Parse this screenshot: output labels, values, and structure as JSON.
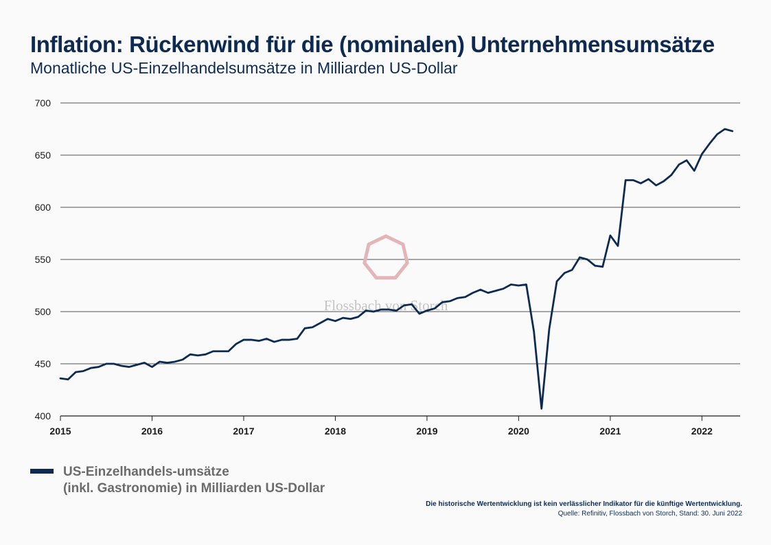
{
  "chart_data": {
    "type": "line",
    "title": "Inflation: Rückenwind für die (nominalen) Unternehmensumsätze",
    "subtitle": "Monatliche US-Einzelhandelsumsätze in Milliarden US-Dollar",
    "watermark": "Flossbach von Storch",
    "x_ticks": [
      "2015",
      "2016",
      "2017",
      "2018",
      "2019",
      "2020",
      "2021",
      "2022"
    ],
    "y_ticks": [
      "400",
      "450",
      "500",
      "550",
      "600",
      "650",
      "700"
    ],
    "ylim": [
      400,
      700
    ],
    "xlim": [
      "2015-01",
      "2022-06"
    ],
    "grid": "horizontal",
    "legend_position": "bottom-left",
    "series": [
      {
        "name": "US-Einzelhandels-umsätze (inkl. Gastronomie) in Milliarden US-Dollar",
        "color": "#0d2b52",
        "x": [
          "2015-01",
          "2015-02",
          "2015-03",
          "2015-04",
          "2015-05",
          "2015-06",
          "2015-07",
          "2015-08",
          "2015-09",
          "2015-10",
          "2015-11",
          "2015-12",
          "2016-01",
          "2016-02",
          "2016-03",
          "2016-04",
          "2016-05",
          "2016-06",
          "2016-07",
          "2016-08",
          "2016-09",
          "2016-10",
          "2016-11",
          "2016-12",
          "2017-01",
          "2017-02",
          "2017-03",
          "2017-04",
          "2017-05",
          "2017-06",
          "2017-07",
          "2017-08",
          "2017-09",
          "2017-10",
          "2017-11",
          "2017-12",
          "2018-01",
          "2018-02",
          "2018-03",
          "2018-04",
          "2018-05",
          "2018-06",
          "2018-07",
          "2018-08",
          "2018-09",
          "2018-10",
          "2018-11",
          "2018-12",
          "2019-01",
          "2019-02",
          "2019-03",
          "2019-04",
          "2019-05",
          "2019-06",
          "2019-07",
          "2019-08",
          "2019-09",
          "2019-10",
          "2019-11",
          "2019-12",
          "2020-01",
          "2020-02",
          "2020-03",
          "2020-04",
          "2020-05",
          "2020-06",
          "2020-07",
          "2020-08",
          "2020-09",
          "2020-10",
          "2020-11",
          "2020-12",
          "2021-01",
          "2021-02",
          "2021-03",
          "2021-04",
          "2021-05",
          "2021-06",
          "2021-07",
          "2021-08",
          "2021-09",
          "2021-10",
          "2021-11",
          "2021-12",
          "2022-01",
          "2022-02",
          "2022-03",
          "2022-04",
          "2022-05"
        ],
        "values": [
          436,
          435,
          442,
          443,
          446,
          447,
          450,
          450,
          448,
          447,
          449,
          451,
          447,
          452,
          451,
          452,
          454,
          459,
          458,
          459,
          462,
          462,
          462,
          469,
          473,
          473,
          472,
          474,
          471,
          473,
          473,
          474,
          484,
          485,
          489,
          493,
          491,
          494,
          493,
          495,
          501,
          500,
          502,
          502,
          501,
          506,
          507,
          498,
          501,
          503,
          509,
          510,
          513,
          514,
          518,
          521,
          518,
          520,
          522,
          526,
          525,
          526,
          481,
          407,
          483,
          529,
          537,
          540,
          552,
          550,
          544,
          543,
          573,
          563,
          626,
          626,
          623,
          627,
          621,
          625,
          631,
          641,
          645,
          635,
          651,
          661,
          670,
          675,
          673
        ]
      }
    ]
  },
  "legend": {
    "line1": "US-Einzelhandels-umsätze",
    "line2": "(inkl. Gastronomie) in Milliarden US-Dollar"
  },
  "footer": {
    "disclaimer": "Die historische Wertentwicklung ist kein verlässlicher Indikator für die künftige Wertentwicklung.",
    "source": "Quelle: Refinitiv, Flossbach von Storch, Stand: 30. Juni 2022"
  }
}
